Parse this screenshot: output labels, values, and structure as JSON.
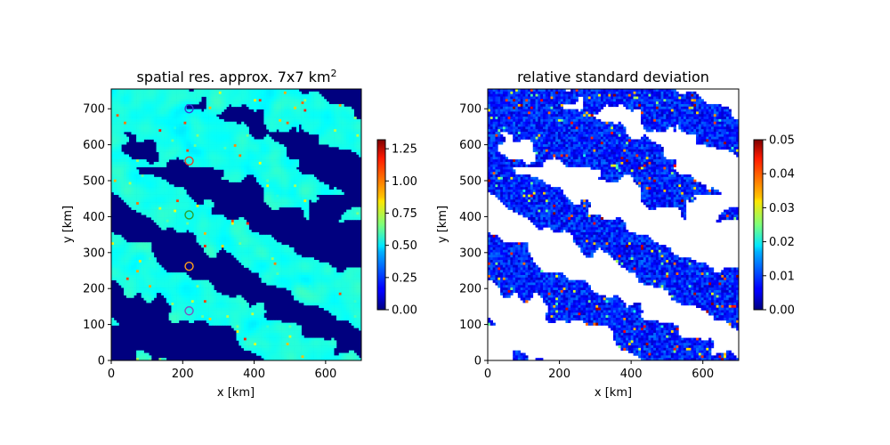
{
  "chart_data": [
    {
      "type": "heatmap",
      "title": "spatial res. approx. 7x7 km",
      "title_superscript": "2",
      "xlabel": "x [km]",
      "ylabel": "y [km]",
      "xlim": [
        0,
        700
      ],
      "ylim": [
        0,
        755
      ],
      "xticks": [
        "0",
        "200",
        "400",
        "600"
      ],
      "yticks": [
        "0",
        "100",
        "200",
        "300",
        "400",
        "500",
        "600",
        "700"
      ],
      "colormap": "jet",
      "colorbar": {
        "min": 0,
        "max": 1.32,
        "ticks": [
          "0.00",
          "0.25",
          "0.50",
          "0.75",
          "1.00",
          "1.25"
        ]
      },
      "background_color": "#00007f",
      "typical_value": 0.5,
      "markers": [
        {
          "x": 218,
          "y": 700,
          "color": "#3b3bd8"
        },
        {
          "x": 218,
          "y": 555,
          "color": "#e0402a"
        },
        {
          "x": 218,
          "y": 405,
          "color": "#2ca02c"
        },
        {
          "x": 218,
          "y": 262,
          "color": "#ff9f1c"
        },
        {
          "x": 218,
          "y": 138,
          "color": "#7f4fbf"
        }
      ]
    },
    {
      "type": "heatmap",
      "title": "relative standard deviation",
      "xlabel": "x [km]",
      "ylabel": "y [km]",
      "xlim": [
        0,
        700
      ],
      "ylim": [
        0,
        755
      ],
      "xticks": [
        "0",
        "200",
        "400",
        "600"
      ],
      "yticks": [
        "0",
        "100",
        "200",
        "300",
        "400",
        "500",
        "600",
        "700"
      ],
      "colormap": "jet",
      "colorbar": {
        "min": 0,
        "max": 0.05,
        "ticks": [
          "0.00",
          "0.01",
          "0.02",
          "0.03",
          "0.04",
          "0.05"
        ]
      },
      "background_color": "#ffffff",
      "typical_value": 0.007
    }
  ]
}
